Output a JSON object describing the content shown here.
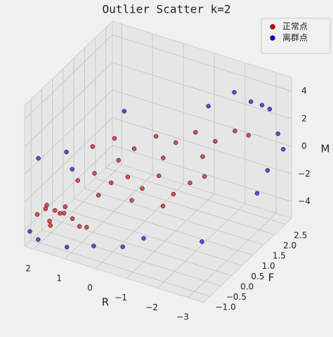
{
  "chart_data": {
    "type": "scatter3d",
    "title": "Outlier Scatter k=2",
    "xlabel": "R",
    "ylabel": "F",
    "zlabel": "M",
    "xlim": [
      -3.5,
      2.3
    ],
    "ylim": [
      -1.3,
      2.8
    ],
    "zlim": [
      -5.2,
      5
    ],
    "xticks": [
      2,
      1,
      0,
      {
        "value": -1,
        "label": "−1"
      },
      {
        "value": -2,
        "label": "−2"
      },
      {
        "value": -3,
        "label": "−3"
      }
    ],
    "yticks": [
      {
        "value": -1,
        "label": "−1.0"
      },
      {
        "value": -0.5,
        "label": "−0.5"
      },
      {
        "value": 0,
        "label": "0.0"
      },
      0.5,
      {
        "value": 1,
        "label": "1.0"
      },
      1.5,
      {
        "value": 2,
        "label": "2.0"
      },
      2.5
    ],
    "zticks": [
      {
        "value": -4,
        "label": "−4"
      },
      {
        "value": -2,
        "label": "−2"
      },
      0,
      2,
      4
    ],
    "grid": true,
    "legend": "upper right",
    "series": [
      {
        "name": "正常点",
        "color": "#c00000",
        "x": [
          2.1,
          1.9,
          1.7,
          1.5,
          1.3,
          2.0,
          1.6,
          1.1,
          0.8,
          0.5,
          1.8,
          1.4,
          1.2,
          0.8,
          0.4,
          0.0,
          -0.4,
          -0.8,
          -1.2,
          -1.6,
          -2.0,
          0.6,
          -0.2,
          -1.0,
          1.0,
          0.5,
          0.0,
          -0.5,
          -1.0,
          -1.5,
          -2.0,
          -2.5,
          -0.8,
          -1.8,
          0.3,
          -2.8
        ],
        "y": [
          -1.0,
          -0.9,
          -1.0,
          -0.8,
          -0.9,
          -0.7,
          -1.1,
          -0.8,
          -0.9,
          -1.0,
          -0.6,
          -0.7,
          -0.4,
          -0.2,
          0.0,
          0.2,
          0.3,
          0.5,
          0.6,
          0.8,
          0.9,
          -0.3,
          0.1,
          0.4,
          0.0,
          0.3,
          0.5,
          0.8,
          1.0,
          1.2,
          1.4,
          1.6,
          0.7,
          1.1,
          0.2,
          1.8
        ],
        "z": [
          -3.2,
          -2.8,
          -3.4,
          -3.0,
          -2.7,
          -2.9,
          -3.5,
          -3.1,
          -3.3,
          -3.0,
          -3.3,
          -2.6,
          -1.0,
          -0.5,
          -1.2,
          -0.8,
          -1.5,
          -0.6,
          -1.8,
          -1.0,
          -0.4,
          -1.8,
          -2.2,
          -2.5,
          1.0,
          1.5,
          0.8,
          1.6,
          1.2,
          2.0,
          1.4,
          2.2,
          0.4,
          0.6,
          0.2,
          1.8
        ]
      },
      {
        "name": "离群点",
        "color": "#0000cc",
        "x": [
          2.2,
          1.0,
          0.2,
          -0.6,
          2.0,
          1.5,
          2.2,
          -2.6,
          -3.0,
          -2.2,
          -3.2,
          -3.0,
          -2.8,
          -3.3,
          -1.5,
          -1.0,
          0.6,
          -2.4,
          1.8,
          -3.1
        ],
        "y": [
          -1.2,
          -1.2,
          -1.1,
          -0.9,
          -1.1,
          -0.5,
          -0.8,
          2.2,
          2.5,
          2.0,
          2.6,
          2.4,
          2.2,
          2.7,
          1.8,
          -0.5,
          0.9,
          0.2,
          0.2,
          2.0
        ],
        "z": [
          -4.2,
          -4.5,
          -4.0,
          -3.8,
          -4.8,
          1.0,
          0.5,
          3.5,
          2.8,
          4.2,
          1.0,
          -1.5,
          -3.0,
          -0.2,
          3.0,
          -3.5,
          2.5,
          -3.8,
          -1.5,
          3.9
        ]
      }
    ]
  }
}
